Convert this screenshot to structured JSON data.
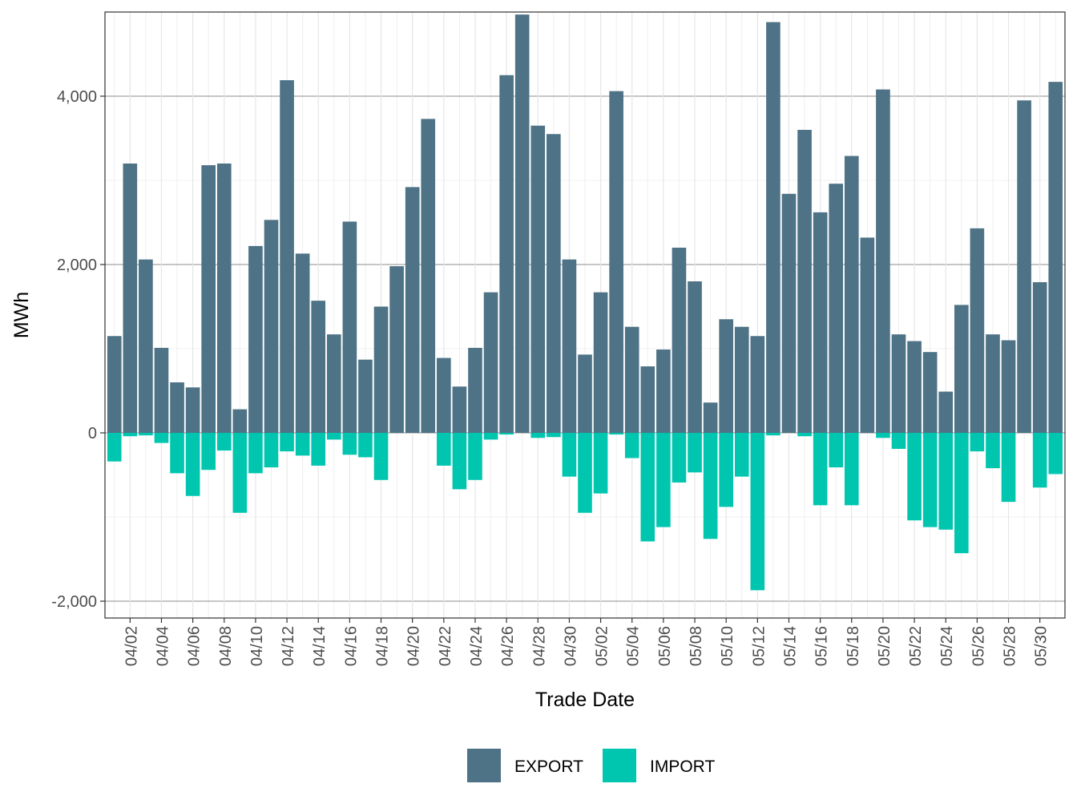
{
  "chart_data": {
    "type": "bar",
    "stacked_diverging": true,
    "title": "",
    "xlabel": "Trade Date",
    "ylabel": "MWh",
    "ylim": [
      -2200,
      5000
    ],
    "y_ticks": [
      -2000,
      0,
      2000,
      4000
    ],
    "y_tick_labels": [
      "-2,000",
      "0",
      "2,000",
      "4,000"
    ],
    "x_tick_labels": [
      "04/02",
      "04/04",
      "04/06",
      "04/08",
      "04/10",
      "04/12",
      "04/14",
      "04/16",
      "04/18",
      "04/20",
      "04/22",
      "04/24",
      "04/26",
      "04/28",
      "04/30",
      "05/02",
      "05/04",
      "05/06",
      "05/08",
      "05/10",
      "05/12",
      "05/14",
      "05/16",
      "05/18",
      "05/20",
      "05/22",
      "05/24",
      "05/26",
      "05/28",
      "05/30"
    ],
    "grid": true,
    "legend_position": "bottom",
    "categories": [
      "04/01",
      "04/02",
      "04/03",
      "04/04",
      "04/05",
      "04/06",
      "04/07",
      "04/08",
      "04/09",
      "04/10",
      "04/11",
      "04/12",
      "04/13",
      "04/14",
      "04/15",
      "04/16",
      "04/17",
      "04/18",
      "04/19",
      "04/20",
      "04/21",
      "04/22",
      "04/23",
      "04/24",
      "04/25",
      "04/26",
      "04/27",
      "04/28",
      "04/29",
      "04/30",
      "05/01",
      "05/02",
      "05/03",
      "05/04",
      "05/05",
      "05/06",
      "05/07",
      "05/08",
      "05/09",
      "05/10",
      "05/11",
      "05/12",
      "05/13",
      "05/14",
      "05/15",
      "05/16",
      "05/17",
      "05/18",
      "05/19",
      "05/20",
      "05/21",
      "05/22",
      "05/23",
      "05/24",
      "05/25",
      "05/26",
      "05/27",
      "05/28",
      "05/29",
      "05/30",
      "05/31"
    ],
    "series": [
      {
        "name": "EXPORT",
        "color": "#4e7286",
        "values": [
          1150,
          3200,
          2060,
          1010,
          600,
          540,
          3180,
          3200,
          280,
          2220,
          2530,
          4190,
          2130,
          1570,
          1170,
          2510,
          870,
          1500,
          1980,
          2920,
          3730,
          890,
          550,
          1010,
          1670,
          4250,
          4970,
          3650,
          3550,
          2060,
          930,
          1670,
          4060,
          1260,
          790,
          990,
          2200,
          1800,
          360,
          1350,
          1260,
          1150,
          4880,
          2840,
          3600,
          2620,
          2960,
          3290,
          2320,
          4080,
          1170,
          1090,
          960,
          490,
          1520,
          2430,
          1170,
          1100,
          3950,
          1790,
          4170
        ]
      },
      {
        "name": "IMPORT",
        "color": "#00c6b0",
        "values": [
          -340,
          -40,
          -30,
          -120,
          -480,
          -750,
          -440,
          -210,
          -950,
          -480,
          -410,
          -220,
          -270,
          -390,
          -80,
          -260,
          -290,
          -560,
          0,
          0,
          0,
          -390,
          -670,
          -560,
          -80,
          -20,
          0,
          -60,
          -50,
          -520,
          -950,
          -720,
          -20,
          -300,
          -1290,
          -1120,
          -590,
          -470,
          -1260,
          -880,
          -520,
          -1870,
          -30,
          0,
          -40,
          -860,
          -410,
          -860,
          0,
          -60,
          -190,
          -1040,
          -1120,
          -1150,
          -1430,
          -220,
          -420,
          -820,
          0,
          -650,
          -490
        ]
      }
    ]
  },
  "legend": {
    "items": [
      {
        "label": "EXPORT",
        "color": "#4e7286"
      },
      {
        "label": "IMPORT",
        "color": "#00c6b0"
      }
    ]
  }
}
